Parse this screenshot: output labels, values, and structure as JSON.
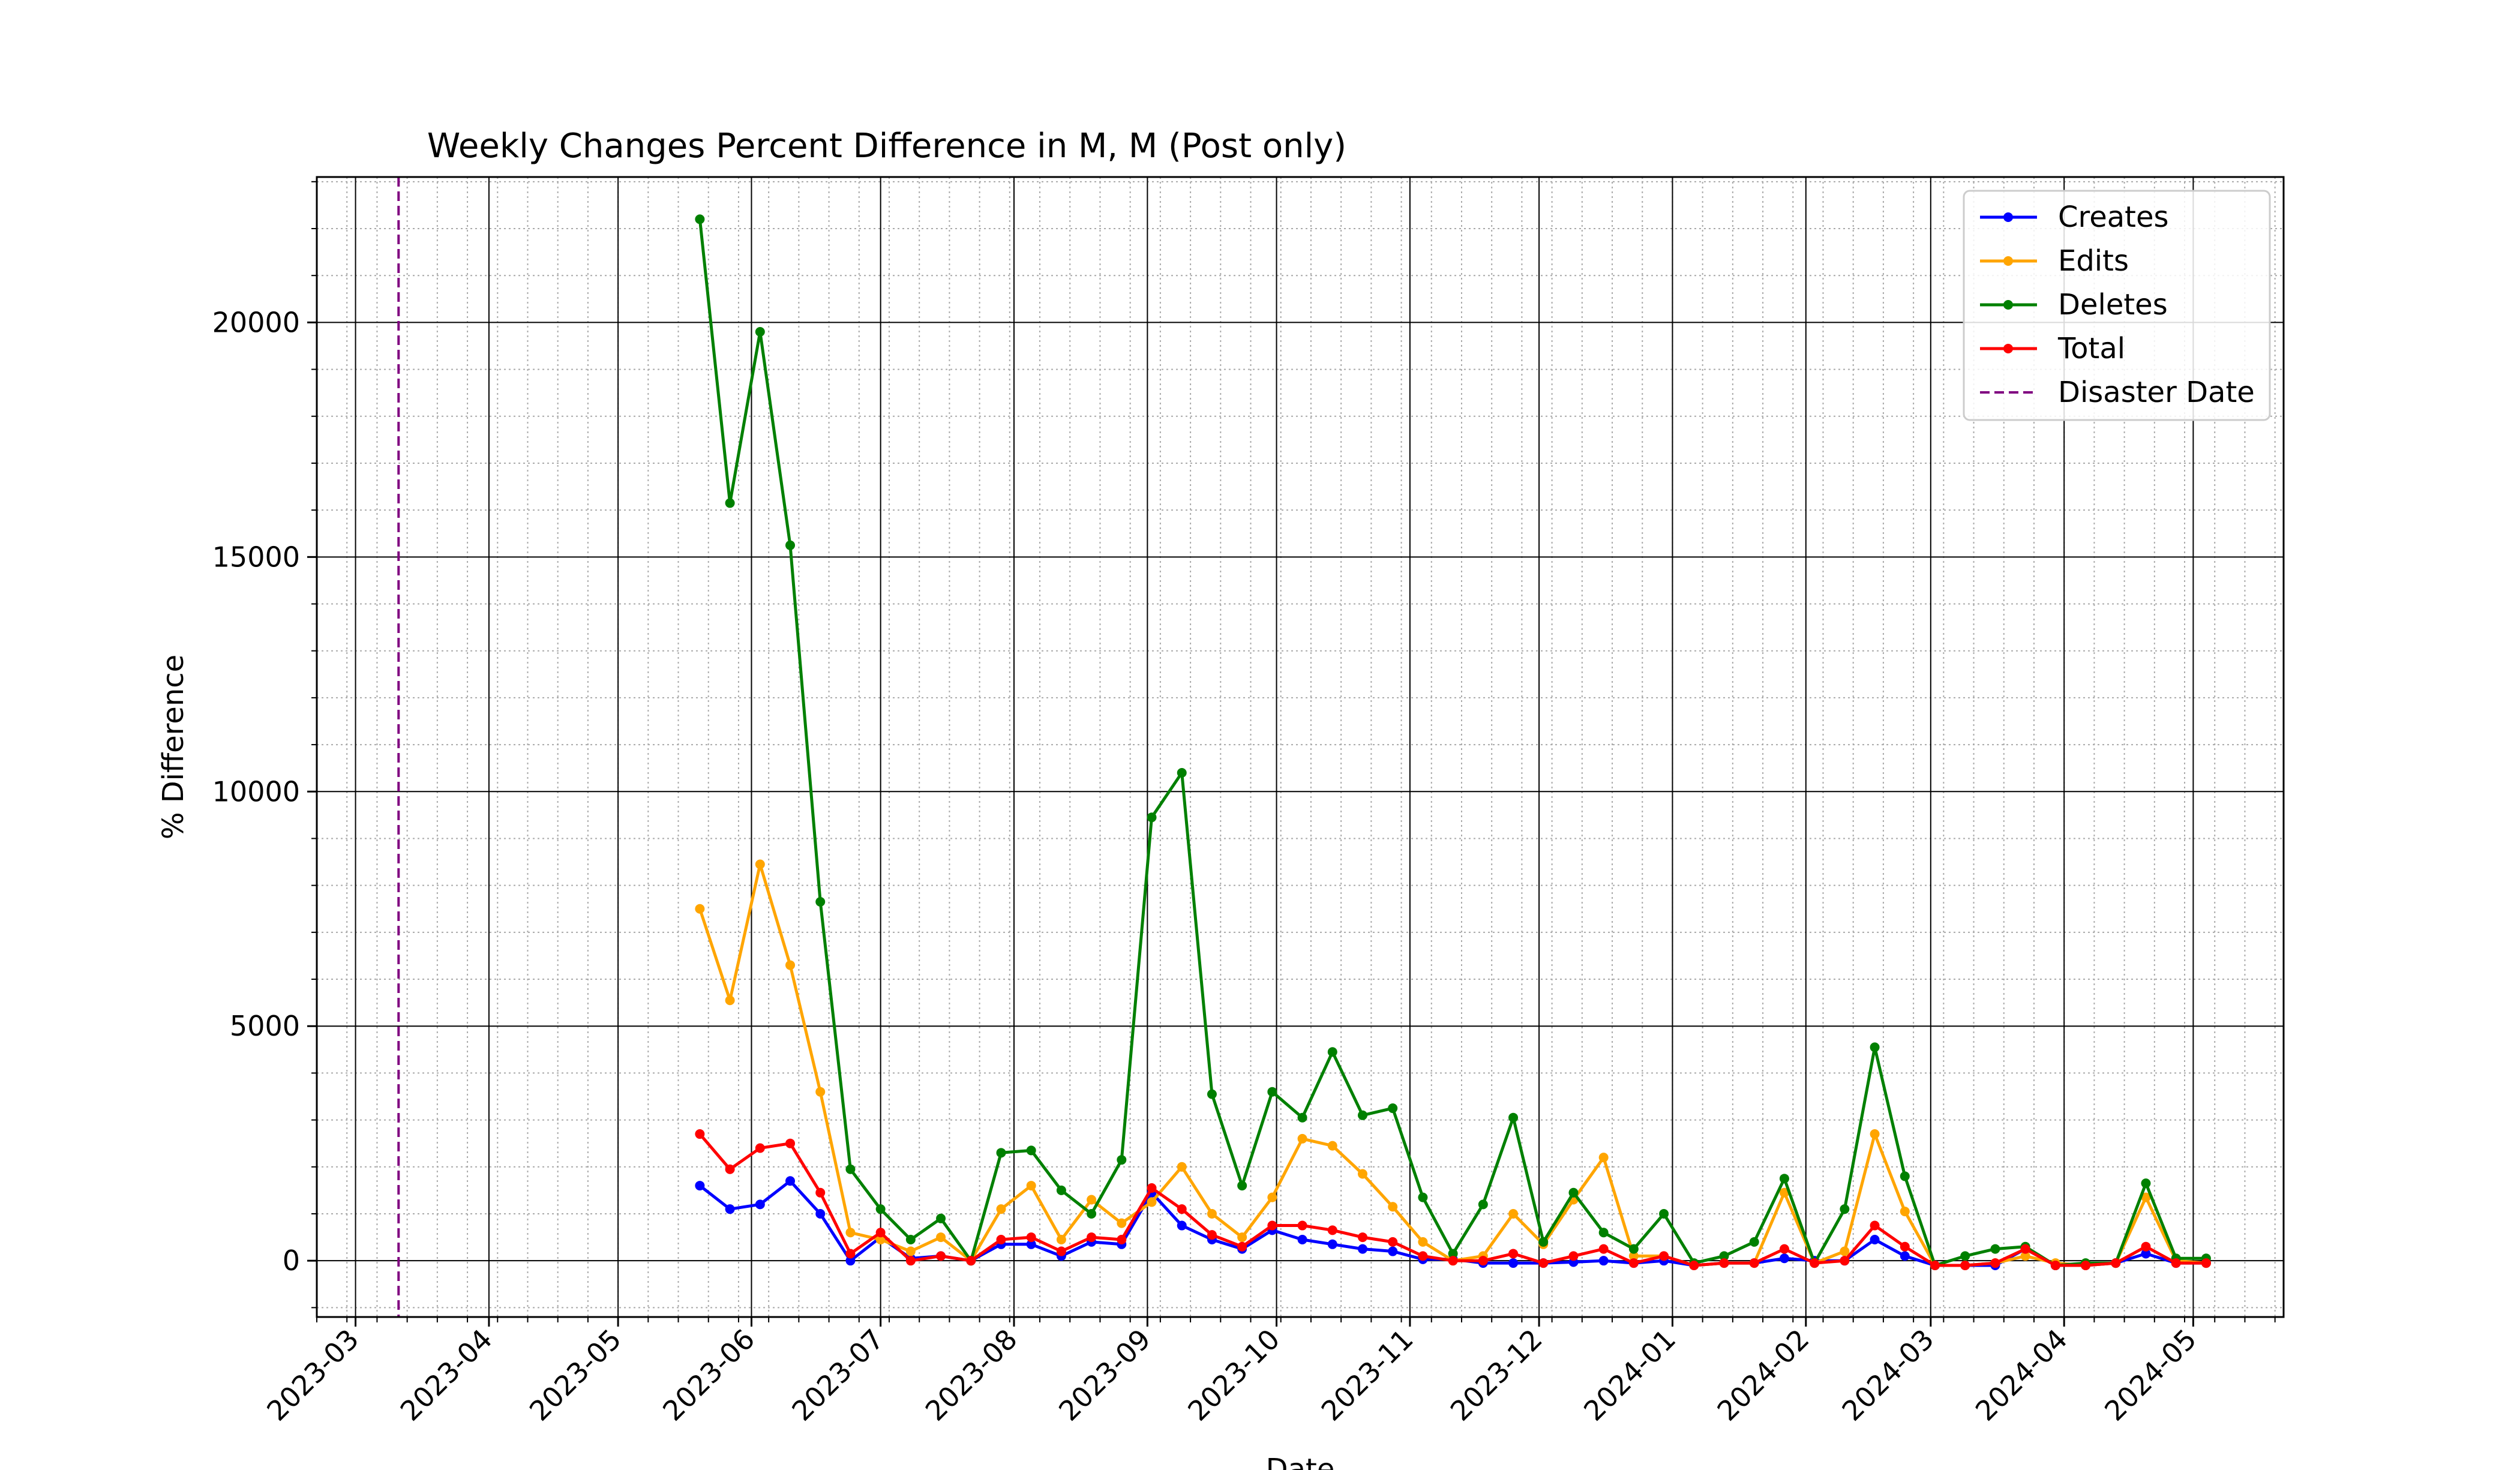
{
  "chart_data": {
    "type": "line",
    "title": "Weekly Changes Percent Difference in M, M (Post only)",
    "xlabel": "Date",
    "ylabel": "% Difference",
    "x_range": [
      "2023-02-20",
      "2024-05-22"
    ],
    "ylim": [
      -1200,
      23100
    ],
    "y_ticks": [
      0,
      5000,
      10000,
      15000,
      20000
    ],
    "x_ticks": [
      "2023-03",
      "2023-04",
      "2023-05",
      "2023-06",
      "2023-07",
      "2023-08",
      "2023-09",
      "2023-10",
      "2023-11",
      "2023-12",
      "2024-01",
      "2024-02",
      "2024-03",
      "2024-04",
      "2024-05"
    ],
    "grid": true,
    "minor_grid": true,
    "legend_position": "top-right",
    "vline": {
      "name": "Disaster Date",
      "date": "2023-03-11",
      "color": "#800080",
      "style": "dashed"
    },
    "x": [
      "2023-05-20",
      "2023-05-27",
      "2023-06-03",
      "2023-06-10",
      "2023-06-17",
      "2023-06-24",
      "2023-07-01",
      "2023-07-08",
      "2023-07-15",
      "2023-07-22",
      "2023-07-29",
      "2023-08-05",
      "2023-08-12",
      "2023-08-19",
      "2023-08-26",
      "2023-09-02",
      "2023-09-09",
      "2023-09-16",
      "2023-09-23",
      "2023-09-30",
      "2023-10-07",
      "2023-10-14",
      "2023-10-21",
      "2023-10-28",
      "2023-11-04",
      "2023-11-11",
      "2023-11-18",
      "2023-11-25",
      "2023-12-02",
      "2023-12-09",
      "2023-12-16",
      "2023-12-23",
      "2023-12-30",
      "2024-01-06",
      "2024-01-13",
      "2024-01-20",
      "2024-01-27",
      "2024-02-03",
      "2024-02-10",
      "2024-02-17",
      "2024-02-24",
      "2024-03-02",
      "2024-03-09",
      "2024-03-16",
      "2024-03-23",
      "2024-03-30",
      "2024-04-06",
      "2024-04-13",
      "2024-04-20",
      "2024-04-27",
      "2024-05-04"
    ],
    "series": [
      {
        "name": "Creates",
        "color": "#0000ff",
        "values": [
          1600,
          1100,
          1200,
          1700,
          1000,
          0,
          500,
          50,
          100,
          0,
          350,
          350,
          100,
          400,
          350,
          1450,
          750,
          450,
          250,
          650,
          450,
          350,
          250,
          200,
          30,
          30,
          -50,
          -50,
          -50,
          -30,
          0,
          -50,
          0,
          -100,
          -50,
          -50,
          50,
          0,
          0,
          450,
          100,
          -100,
          -100,
          -100,
          250,
          -100,
          -100,
          -50,
          150,
          -50,
          -50
        ]
      },
      {
        "name": "Edits",
        "color": "#ffa500",
        "values": [
          7500,
          5550,
          8450,
          6300,
          3600,
          600,
          450,
          200,
          500,
          0,
          1100,
          1600,
          450,
          1300,
          800,
          1250,
          2000,
          1000,
          500,
          1350,
          2600,
          2450,
          1850,
          1150,
          400,
          0,
          100,
          1000,
          350,
          1300,
          2200,
          100,
          100,
          -100,
          -50,
          -50,
          1450,
          -50,
          200,
          2700,
          1050,
          -100,
          -100,
          -50,
          100,
          -50,
          -100,
          -50,
          1350,
          0,
          -50
        ]
      },
      {
        "name": "Deletes",
        "color": "#008000",
        "values": [
          22200,
          16150,
          19800,
          15250,
          7650,
          1950,
          1100,
          450,
          900,
          0,
          2300,
          2350,
          1500,
          1000,
          2150,
          9450,
          10400,
          3550,
          1600,
          3600,
          3050,
          4450,
          3100,
          3250,
          1350,
          150,
          1200,
          3050,
          400,
          1450,
          600,
          250,
          1000,
          -50,
          100,
          400,
          1750,
          -50,
          1100,
          4550,
          1800,
          -100,
          100,
          250,
          300,
          -100,
          -50,
          -50,
          1650,
          50,
          50
        ]
      },
      {
        "name": "Total",
        "color": "#ff0000",
        "values": [
          2700,
          1950,
          2400,
          2500,
          1450,
          150,
          600,
          0,
          100,
          0,
          450,
          500,
          200,
          500,
          450,
          1550,
          1100,
          550,
          300,
          750,
          750,
          650,
          500,
          400,
          100,
          0,
          0,
          150,
          -50,
          100,
          250,
          -50,
          100,
          -100,
          -50,
          -50,
          250,
          -50,
          0,
          750,
          300,
          -100,
          -100,
          -50,
          250,
          -100,
          -100,
          -50,
          300,
          -50,
          -50
        ]
      }
    ]
  }
}
